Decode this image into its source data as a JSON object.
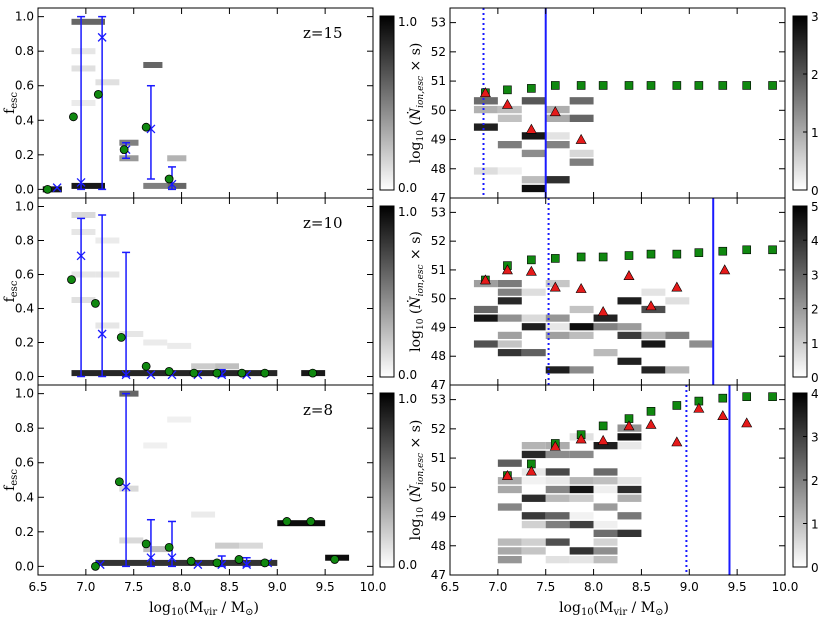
{
  "chart_data": [
    {
      "type": "heatmap",
      "panel": "left-top",
      "redshift_label": "z=15",
      "xlabel": "log10(Mvir / M⊙)",
      "ylabel": "fesc",
      "xlim": [
        6.5,
        10.0
      ],
      "ylim": [
        -0.05,
        1.05
      ],
      "colorbar": {
        "min_label": "0.0",
        "max_label": "1.0"
      },
      "median_points": [
        [
          6.6,
          0.0
        ],
        [
          6.87,
          0.42
        ],
        [
          7.13,
          0.55
        ],
        [
          7.4,
          0.23
        ],
        [
          7.63,
          0.36
        ],
        [
          7.87,
          0.06
        ]
      ],
      "mean_points": [
        [
          6.7,
          0.01
        ],
        [
          6.95,
          0.04
        ],
        [
          7.17,
          0.88
        ],
        [
          7.42,
          0.23
        ],
        [
          7.68,
          0.35
        ],
        [
          7.9,
          0.03
        ]
      ],
      "errorbars": [
        [
          6.95,
          0.0,
          1.0
        ],
        [
          7.17,
          0.0,
          1.0
        ],
        [
          7.42,
          0.18,
          0.27
        ],
        [
          7.68,
          0.06,
          0.6
        ],
        [
          7.9,
          0.0,
          0.13
        ]
      ]
    },
    {
      "type": "heatmap",
      "panel": "right-top",
      "ylabel": "log10(Ṅion,esc × s)",
      "xlim": [
        6.5,
        10.0
      ],
      "ylim": [
        47,
        53.5
      ],
      "colorbar": {
        "ticks": [
          "0",
          "1",
          "2",
          "3"
        ]
      },
      "dotted_vline": 6.85,
      "solid_vline": 7.5,
      "green_squares": [
        [
          6.87,
          50.6
        ],
        [
          7.1,
          50.7
        ],
        [
          7.35,
          50.75
        ],
        [
          7.6,
          50.85
        ],
        [
          7.87,
          50.85
        ],
        [
          8.1,
          50.85
        ],
        [
          8.37,
          50.85
        ],
        [
          8.6,
          50.85
        ],
        [
          8.87,
          50.85
        ],
        [
          9.1,
          50.85
        ],
        [
          9.35,
          50.85
        ],
        [
          9.6,
          50.85
        ],
        [
          9.87,
          50.85
        ]
      ],
      "red_triangles": [
        [
          6.87,
          50.6
        ],
        [
          7.1,
          50.2
        ],
        [
          7.35,
          49.35
        ],
        [
          7.6,
          49.95
        ],
        [
          7.87,
          49.0
        ]
      ]
    },
    {
      "type": "heatmap",
      "panel": "left-middle",
      "redshift_label": "z=10",
      "ylabel": "fesc",
      "xlim": [
        6.5,
        10.0
      ],
      "ylim": [
        -0.05,
        1.05
      ],
      "colorbar": {
        "min_label": "0.0",
        "max_label": "1.0"
      },
      "median_points": [
        [
          6.85,
          0.57
        ],
        [
          7.1,
          0.43
        ],
        [
          7.37,
          0.23
        ],
        [
          7.63,
          0.06
        ],
        [
          7.87,
          0.03
        ],
        [
          8.13,
          0.02
        ],
        [
          8.37,
          0.02
        ],
        [
          8.63,
          0.02
        ],
        [
          8.87,
          0.02
        ],
        [
          9.37,
          0.02
        ]
      ],
      "mean_points": [
        [
          6.95,
          0.71
        ],
        [
          7.17,
          0.25
        ],
        [
          7.42,
          0.01
        ],
        [
          7.68,
          0.01
        ],
        [
          7.9,
          0.01
        ],
        [
          8.17,
          0.01
        ],
        [
          8.42,
          0.01
        ],
        [
          8.68,
          0.01
        ]
      ],
      "errorbars": [
        [
          6.95,
          0.0,
          0.93
        ],
        [
          7.17,
          0.0,
          0.95
        ],
        [
          7.42,
          0.0,
          0.73
        ],
        [
          8.42,
          0.0,
          0.04
        ]
      ]
    },
    {
      "type": "heatmap",
      "panel": "right-middle",
      "ylabel": "log10(Ṅion,esc × s)",
      "xlim": [
        6.5,
        10.0
      ],
      "ylim": [
        47,
        53.5
      ],
      "colorbar": {
        "ticks": [
          "0",
          "1",
          "2",
          "3",
          "4",
          "5"
        ]
      },
      "dotted_vline": 7.53,
      "solid_vline": 9.25,
      "green_squares": [
        [
          6.87,
          50.65
        ],
        [
          7.1,
          51.15
        ],
        [
          7.35,
          51.35
        ],
        [
          7.6,
          51.4
        ],
        [
          7.87,
          51.45
        ],
        [
          8.1,
          51.45
        ],
        [
          8.37,
          51.5
        ],
        [
          8.6,
          51.55
        ],
        [
          8.87,
          51.55
        ],
        [
          9.1,
          51.6
        ],
        [
          9.35,
          51.65
        ],
        [
          9.6,
          51.7
        ],
        [
          9.87,
          51.7
        ]
      ],
      "red_triangles": [
        [
          6.87,
          50.65
        ],
        [
          7.1,
          51.0
        ],
        [
          7.35,
          50.95
        ],
        [
          7.6,
          50.4
        ],
        [
          7.87,
          50.35
        ],
        [
          8.1,
          49.55
        ],
        [
          8.37,
          50.8
        ],
        [
          8.6,
          49.75
        ],
        [
          8.87,
          50.4
        ],
        [
          9.37,
          51.0
        ]
      ]
    },
    {
      "type": "heatmap",
      "panel": "left-bottom",
      "redshift_label": "z=8",
      "xlabel": "log10(Mvir / M⊙)",
      "ylabel": "fesc",
      "xlim": [
        6.5,
        10.0
      ],
      "ylim": [
        -0.05,
        1.05
      ],
      "xticks": [
        "6.5",
        "7.0",
        "7.5",
        "8.0",
        "8.5",
        "9.0",
        "9.5",
        "10.0"
      ],
      "colorbar": {
        "min_label": "0.0",
        "max_label": "1.0"
      },
      "median_points": [
        [
          7.1,
          0.0
        ],
        [
          7.35,
          0.49
        ],
        [
          7.63,
          0.13
        ],
        [
          7.87,
          0.11
        ],
        [
          8.1,
          0.03
        ],
        [
          8.37,
          0.02
        ],
        [
          8.6,
          0.04
        ],
        [
          8.87,
          0.02
        ],
        [
          9.1,
          0.26
        ],
        [
          9.35,
          0.26
        ],
        [
          9.6,
          0.04
        ]
      ],
      "mean_points": [
        [
          7.15,
          0.01
        ],
        [
          7.42,
          0.46
        ],
        [
          7.68,
          0.05
        ],
        [
          7.9,
          0.05
        ],
        [
          8.17,
          0.01
        ],
        [
          8.42,
          0.01
        ],
        [
          8.68,
          0.01
        ],
        [
          8.9,
          0.02
        ]
      ],
      "errorbars": [
        [
          7.42,
          0.0,
          1.0
        ],
        [
          7.68,
          0.0,
          0.27
        ],
        [
          7.9,
          0.0,
          0.26
        ],
        [
          8.42,
          0.0,
          0.06
        ],
        [
          8.68,
          0.0,
          0.05
        ]
      ]
    },
    {
      "type": "heatmap",
      "panel": "right-bottom",
      "xlabel": "log10(Mvir / M⊙)",
      "ylabel": "log10(Ṅion,esc × s)",
      "xlim": [
        6.5,
        10.0
      ],
      "ylim": [
        47,
        53.5
      ],
      "xticks": [
        "6.5",
        "7.0",
        "7.5",
        "8.0",
        "8.5",
        "9.0",
        "9.5",
        "10.0"
      ],
      "colorbar": {
        "ticks": [
          "0",
          "1",
          "2",
          "3",
          "4"
        ]
      },
      "dotted_vline": 8.97,
      "solid_vline": 9.42,
      "green_squares": [
        [
          7.1,
          50.4
        ],
        [
          7.35,
          50.8
        ],
        [
          7.6,
          51.5
        ],
        [
          7.87,
          51.8
        ],
        [
          8.1,
          52.1
        ],
        [
          8.37,
          52.35
        ],
        [
          8.6,
          52.6
        ],
        [
          8.87,
          52.8
        ],
        [
          9.1,
          52.95
        ],
        [
          9.35,
          53.05
        ],
        [
          9.6,
          53.1
        ],
        [
          9.87,
          53.1
        ]
      ],
      "red_triangles": [
        [
          7.1,
          50.4
        ],
        [
          7.35,
          50.55
        ],
        [
          7.6,
          51.4
        ],
        [
          7.87,
          51.65
        ],
        [
          8.1,
          51.6
        ],
        [
          8.37,
          52.1
        ],
        [
          8.6,
          52.15
        ],
        [
          8.87,
          51.55
        ],
        [
          9.1,
          52.7
        ],
        [
          9.35,
          52.45
        ],
        [
          9.6,
          52.2
        ]
      ]
    }
  ]
}
